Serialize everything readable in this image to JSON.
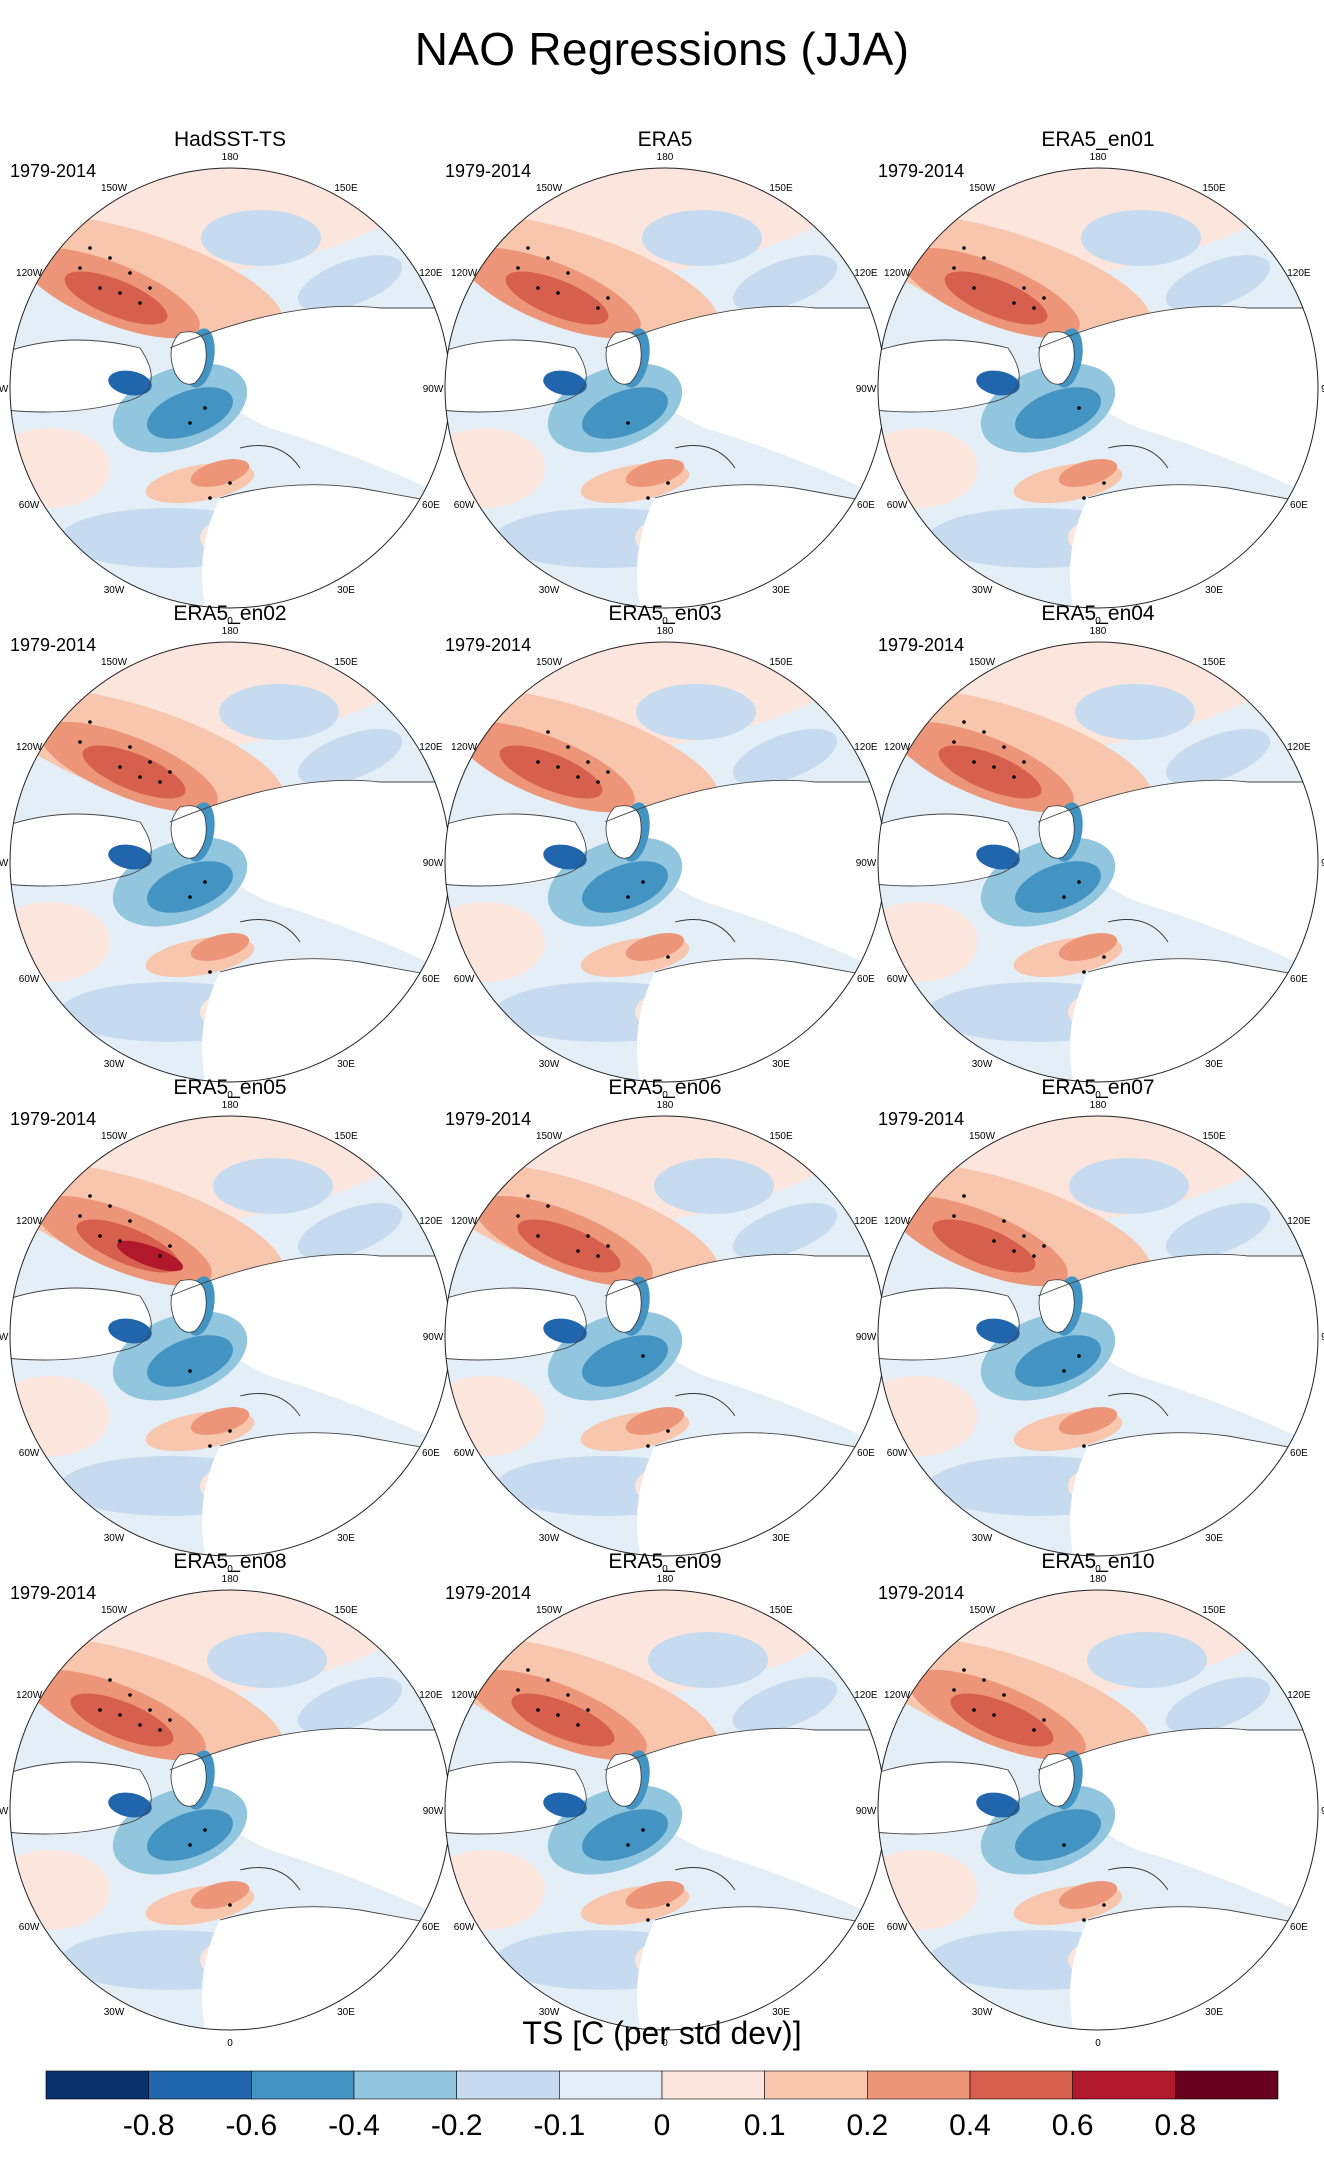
{
  "title": "NAO Regressions (JJA)",
  "chart_data": {
    "type": "heatmap",
    "projection": "north-polar-stereographic",
    "variable": "TS",
    "season": "JJA",
    "colorbar": {
      "title": "TS [C (per std dev)]",
      "levels": [
        -0.8,
        -0.6,
        -0.4,
        -0.2,
        -0.1,
        0,
        0.1,
        0.2,
        0.4,
        0.6,
        0.8
      ],
      "tick_labels": [
        "-0.8",
        "-0.6",
        "-0.4",
        "-0.2",
        "-0.1",
        "0",
        "0.1",
        "0.2",
        "0.4",
        "0.6",
        "0.8"
      ],
      "colors": [
        "#08306b",
        "#2166ac",
        "#4393c3",
        "#92c5de",
        "#c6dbef",
        "#e4eef7",
        "#fbe5dc",
        "#f8c6ad",
        "#ec9578",
        "#d6604d",
        "#b2182b",
        "#67001f"
      ]
    },
    "longitude_labels": [
      "180",
      "150E",
      "120E",
      "90E",
      "60E",
      "30E",
      "0",
      "30W",
      "60W",
      "90W",
      "120W",
      "150W"
    ],
    "panels": [
      {
        "title": "HadSST-TS",
        "period": "1979-2014"
      },
      {
        "title": "ERA5",
        "period": "1979-2014"
      },
      {
        "title": "ERA5_en01",
        "period": "1979-2014"
      },
      {
        "title": "ERA5_en02",
        "period": "1979-2014"
      },
      {
        "title": "ERA5_en03",
        "period": "1979-2014"
      },
      {
        "title": "ERA5_en04",
        "period": "1979-2014"
      },
      {
        "title": "ERA5_en05",
        "period": "1979-2014"
      },
      {
        "title": "ERA5_en06",
        "period": "1979-2014"
      },
      {
        "title": "ERA5_en07",
        "period": "1979-2014"
      },
      {
        "title": "ERA5_en08",
        "period": "1979-2014"
      },
      {
        "title": "ERA5_en09",
        "period": "1979-2014"
      },
      {
        "title": "ERA5_en10",
        "period": "1979-2014"
      }
    ]
  }
}
